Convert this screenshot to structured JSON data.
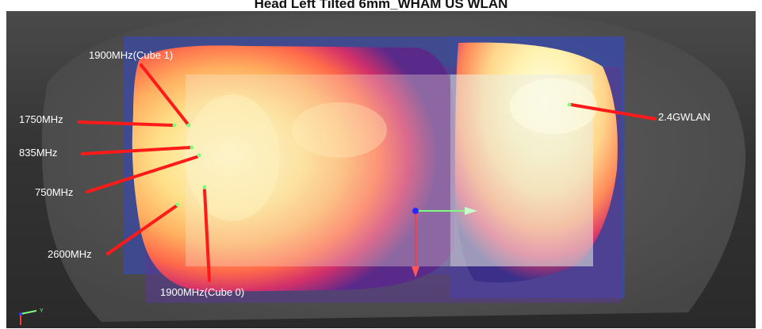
{
  "title": "Head Left Tilted 6mm_WHAM  US WLAN",
  "annotations": [
    {
      "id": "1900-cube1",
      "label": "1900MHz(Cube 1)"
    },
    {
      "id": "1750",
      "label": "1750MHz"
    },
    {
      "id": "835",
      "label": "835MHz"
    },
    {
      "id": "750",
      "label": "750MHz"
    },
    {
      "id": "2600",
      "label": "2600MHz"
    },
    {
      "id": "1900-cube0",
      "label": "1900MHz(Cube 0)"
    },
    {
      "id": "wlan",
      "label": "2.4GWLAN"
    }
  ],
  "colors": {
    "pointer_line": "#ff1a1a",
    "hotspot_marker": "#7dff7d",
    "background": "#3a3a3a"
  },
  "axis_triad": {
    "y_label": "Y"
  }
}
